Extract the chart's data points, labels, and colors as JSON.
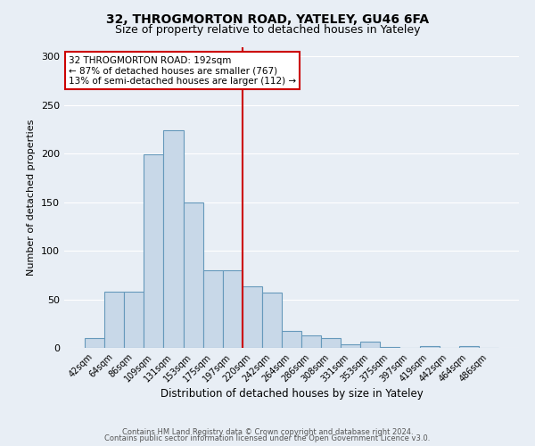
{
  "title": "32, THROGMORTON ROAD, YATELEY, GU46 6FA",
  "subtitle": "Size of property relative to detached houses in Yateley",
  "xlabel": "Distribution of detached houses by size in Yateley",
  "ylabel": "Number of detached properties",
  "bar_values": [
    10,
    58,
    58,
    199,
    224,
    150,
    80,
    80,
    63,
    57,
    17,
    13,
    10,
    4,
    6,
    1,
    0,
    2,
    0,
    2,
    0
  ],
  "bar_labels": [
    "42sqm",
    "64sqm",
    "86sqm",
    "109sqm",
    "131sqm",
    "153sqm",
    "175sqm",
    "197sqm",
    "220sqm",
    "242sqm",
    "264sqm",
    "286sqm",
    "308sqm",
    "331sqm",
    "353sqm",
    "375sqm",
    "397sqm",
    "419sqm",
    "442sqm",
    "464sqm",
    "486sqm"
  ],
  "bar_color": "#c8d8e8",
  "bar_edge_color": "#6699bb",
  "vline_x": 7.5,
  "vline_color": "#cc0000",
  "annotation_title": "32 THROGMORTON ROAD: 192sqm",
  "annotation_line1": "← 87% of detached houses are smaller (767)",
  "annotation_line2": "13% of semi-detached houses are larger (112) →",
  "annotation_box_color": "#ffffff",
  "annotation_box_edge": "#cc0000",
  "ylim": [
    0,
    310
  ],
  "yticks": [
    0,
    50,
    100,
    150,
    200,
    250,
    300
  ],
  "background_color": "#e8eef5",
  "footer1": "Contains HM Land Registry data © Crown copyright and database right 2024.",
  "footer2": "Contains public sector information licensed under the Open Government Licence v3.0."
}
